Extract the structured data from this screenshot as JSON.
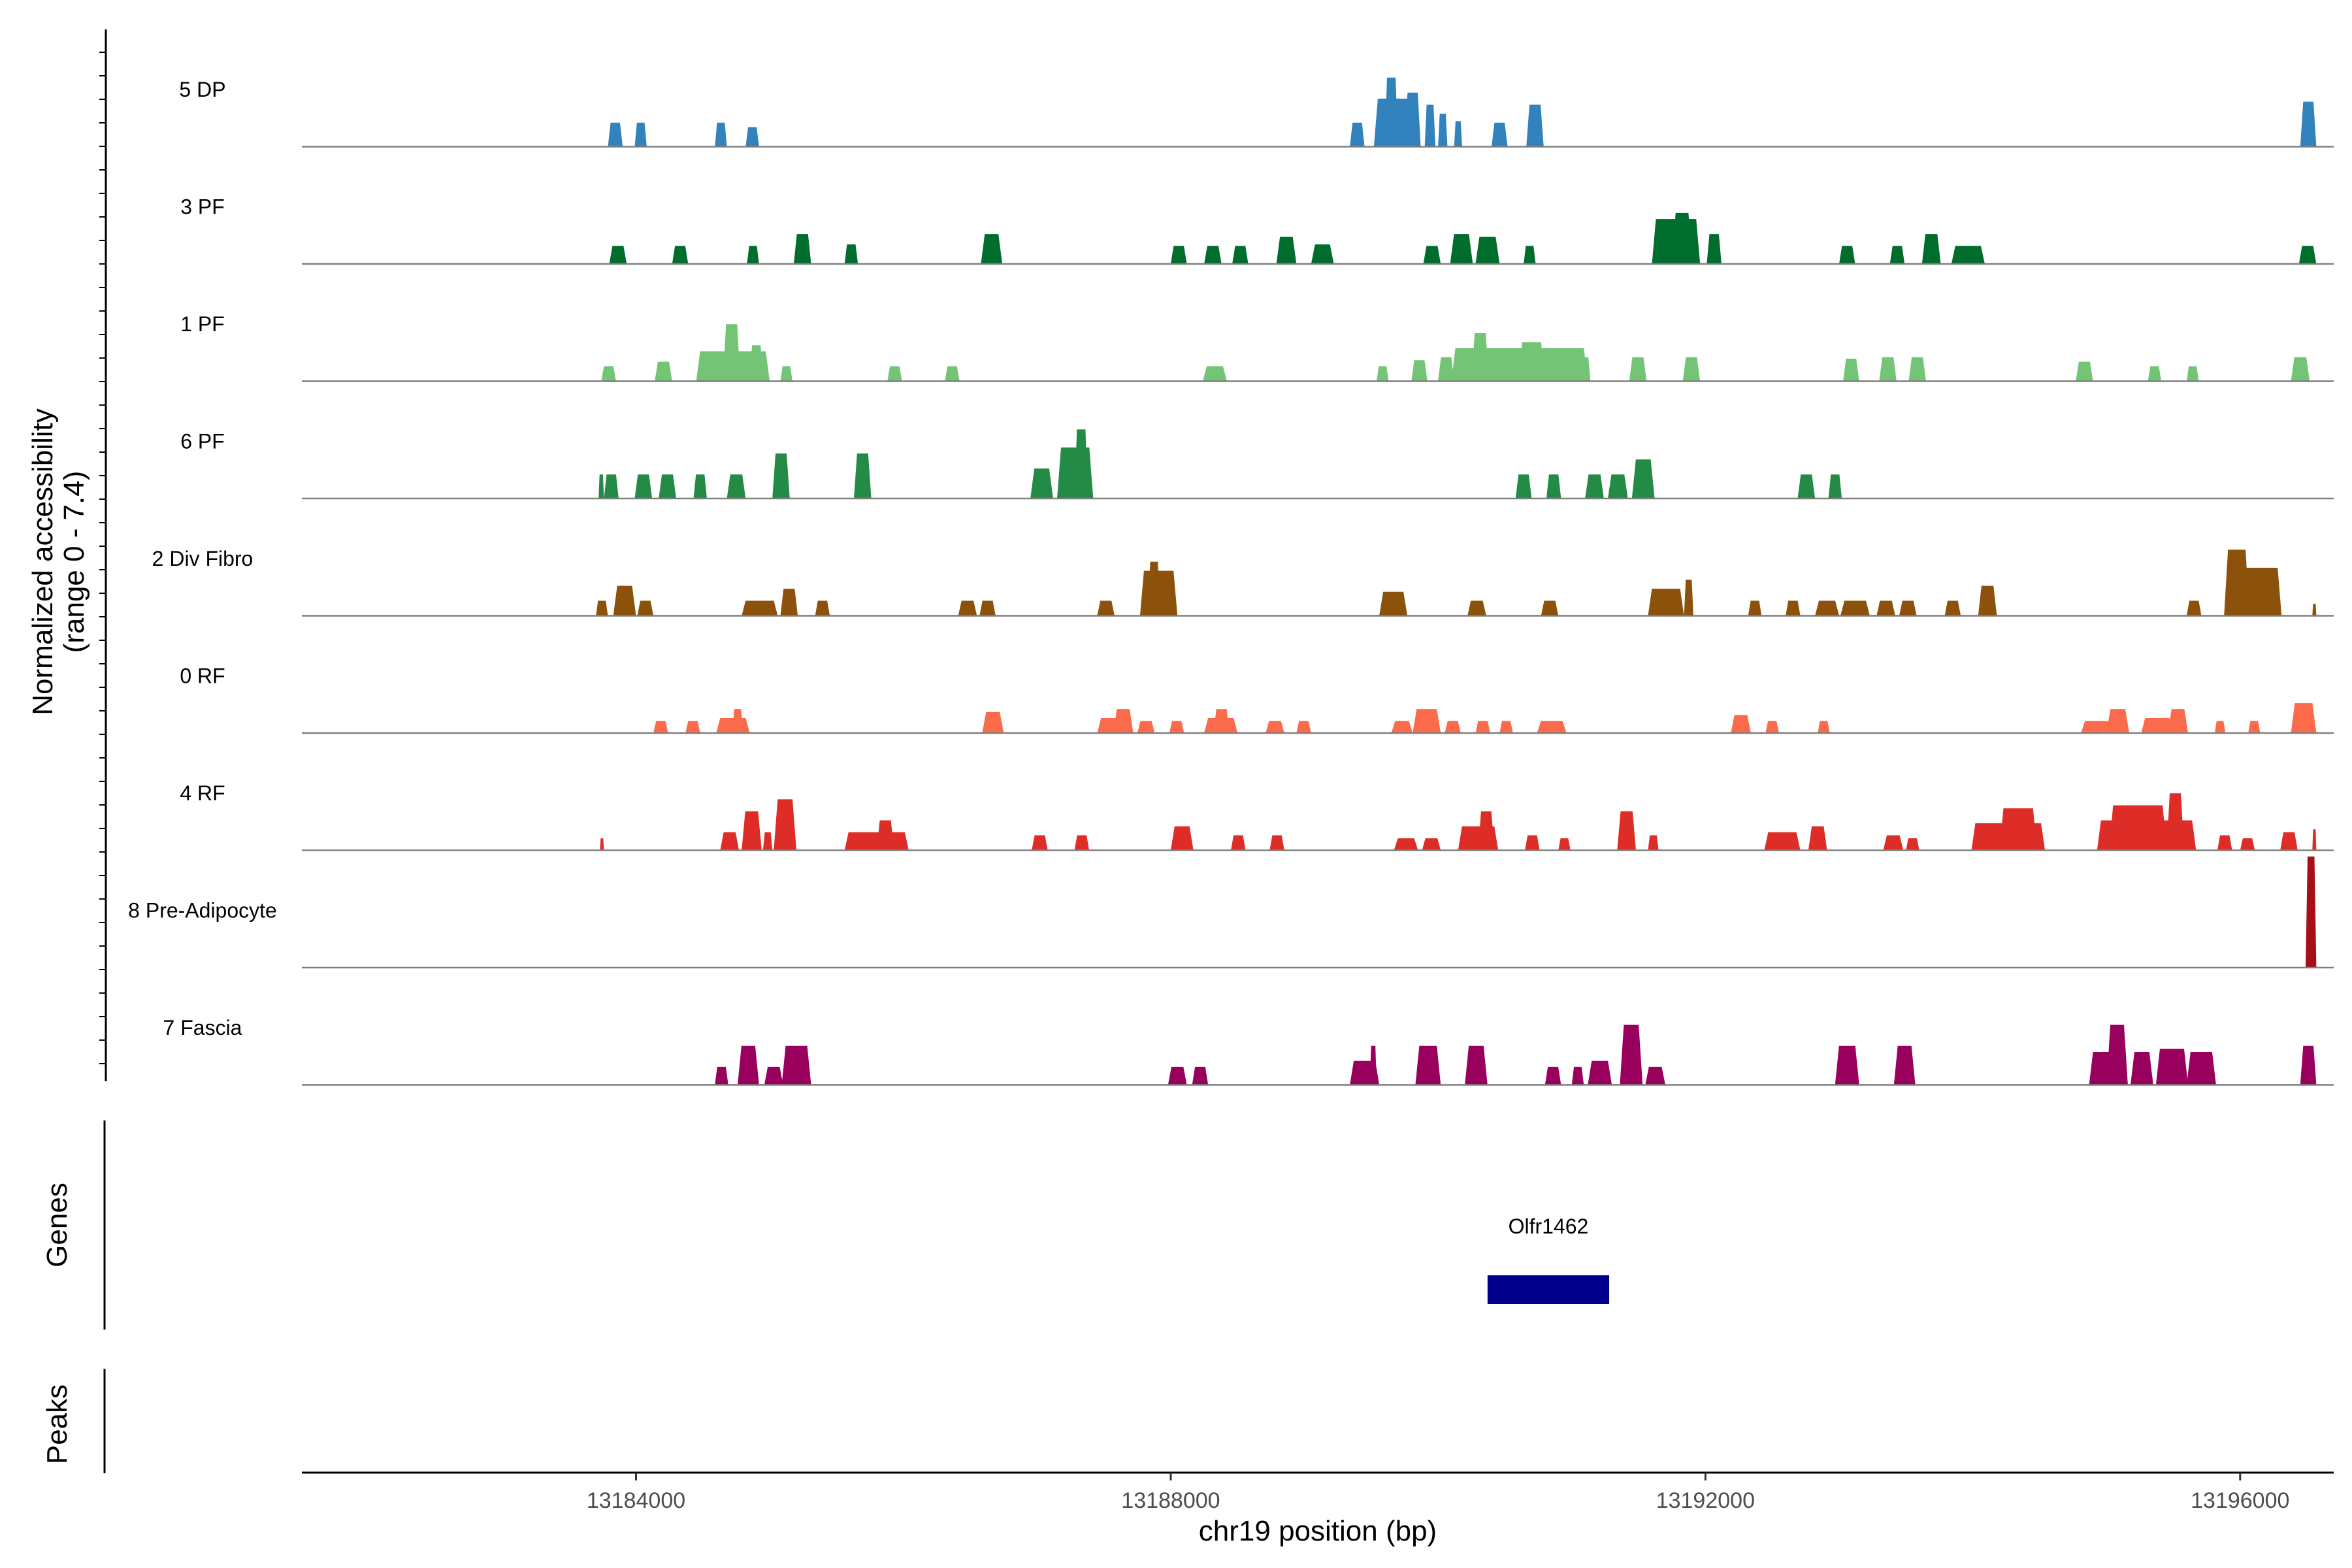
{
  "chart_data": {
    "type": "area",
    "title": "",
    "region": {
      "chrom": "chr19",
      "start": 13181500,
      "end": 13196700
    },
    "xlabel": "chr19 position (bp)",
    "ylabel_line1": "Normalized accessibility",
    "ylabel_line2": "(range 0 - 7.4)",
    "y_range": [
      0,
      7.4
    ],
    "x_ticks": [
      {
        "value": 13184000,
        "label": "13184000"
      },
      {
        "value": 13188000,
        "label": "13188000"
      },
      {
        "value": 13192000,
        "label": "13192000"
      },
      {
        "value": 13196000,
        "label": "13196000"
      }
    ],
    "genes_label": "Genes",
    "peaks_label": "Peaks",
    "genes": [
      {
        "name": "Olfr1462",
        "start": 13190370,
        "end": 13191280,
        "color": "#00008B"
      }
    ],
    "tracks": [
      {
        "name": "5 DP",
        "color": "#3182BD",
        "peaks": [
          [
            13183790,
            13183900,
            1.6
          ],
          [
            13183990,
            13184080,
            1.6
          ],
          [
            13184590,
            13184680,
            1.6
          ],
          [
            13184820,
            13184920,
            1.3
          ],
          [
            13189340,
            13189450,
            1.6
          ],
          [
            13189520,
            13189800,
            3.2
          ],
          [
            13189600,
            13189700,
            4.6
          ],
          [
            13189750,
            13189870,
            3.6
          ],
          [
            13189900,
            13189980,
            2.8
          ],
          [
            13190000,
            13190070,
            2.2
          ],
          [
            13190120,
            13190180,
            1.7
          ],
          [
            13190400,
            13190520,
            1.6
          ],
          [
            13190660,
            13190790,
            2.8
          ],
          [
            13196450,
            13196570,
            3.0
          ]
        ]
      },
      {
        "name": "3 PF",
        "color": "#006D2C",
        "peaks": [
          [
            13183800,
            13183930,
            1.2
          ],
          [
            13184270,
            13184390,
            1.2
          ],
          [
            13184830,
            13184920,
            1.2
          ],
          [
            13185180,
            13185310,
            2.0
          ],
          [
            13185560,
            13185660,
            1.3
          ],
          [
            13186580,
            13186740,
            2.0
          ],
          [
            13188000,
            13188120,
            1.2
          ],
          [
            13188250,
            13188380,
            1.2
          ],
          [
            13188460,
            13188580,
            1.2
          ],
          [
            13188790,
            13188940,
            1.8
          ],
          [
            13189050,
            13189220,
            1.3
          ],
          [
            13189890,
            13190020,
            1.2
          ],
          [
            13190090,
            13190260,
            2.0
          ],
          [
            13190280,
            13190460,
            1.8
          ],
          [
            13190640,
            13190730,
            1.2
          ],
          [
            13191600,
            13191960,
            3.0
          ],
          [
            13191750,
            13191900,
            3.4
          ],
          [
            13192010,
            13192120,
            2.0
          ],
          [
            13193000,
            13193120,
            1.2
          ],
          [
            13193380,
            13193490,
            1.2
          ],
          [
            13193620,
            13193760,
            2.0
          ],
          [
            13193840,
            13194090,
            1.2
          ],
          [
            13196440,
            13196570,
            1.2
          ]
        ]
      },
      {
        "name": "1 PF",
        "color": "#74C476",
        "peaks": [
          [
            13183740,
            13183850,
            1.0
          ],
          [
            13184140,
            13184270,
            1.3
          ],
          [
            13184450,
            13185000,
            2.0
          ],
          [
            13184650,
            13184780,
            3.8
          ],
          [
            13184850,
            13184950,
            2.4
          ],
          [
            13185080,
            13185170,
            1.0
          ],
          [
            13185880,
            13185990,
            1.0
          ],
          [
            13186310,
            13186420,
            1.0
          ],
          [
            13188240,
            13188420,
            1.0
          ],
          [
            13189540,
            13189630,
            1.0
          ],
          [
            13189800,
            13189920,
            1.4
          ],
          [
            13190000,
            13190120,
            1.6
          ],
          [
            13190100,
            13191120,
            2.2
          ],
          [
            13190250,
            13190380,
            3.2
          ],
          [
            13190600,
            13190800,
            2.6
          ],
          [
            13191050,
            13191140,
            1.6
          ],
          [
            13191430,
            13191560,
            1.6
          ],
          [
            13191830,
            13191960,
            1.6
          ],
          [
            13193030,
            13193150,
            1.5
          ],
          [
            13193300,
            13193430,
            1.6
          ],
          [
            13193520,
            13193650,
            1.6
          ],
          [
            13194770,
            13194900,
            1.3
          ],
          [
            13195310,
            13195410,
            1.0
          ],
          [
            13195600,
            13195690,
            1.0
          ],
          [
            13196380,
            13196520,
            1.6
          ]
        ]
      },
      {
        "name": "6 PF",
        "color": "#238B45",
        "peaks": [
          [
            13183720,
            13183760,
            1.6
          ],
          [
            13183760,
            13183870,
            1.6
          ],
          [
            13183990,
            13184120,
            1.6
          ],
          [
            13184170,
            13184300,
            1.6
          ],
          [
            13184430,
            13184530,
            1.6
          ],
          [
            13184680,
            13184820,
            1.6
          ],
          [
            13185020,
            13185150,
            3.0
          ],
          [
            13185630,
            13185760,
            3.0
          ],
          [
            13186950,
            13187120,
            2.0
          ],
          [
            13187150,
            13187420,
            3.4
          ],
          [
            13187280,
            13187380,
            4.6
          ],
          [
            13190580,
            13190700,
            1.6
          ],
          [
            13190810,
            13190920,
            1.6
          ],
          [
            13191100,
            13191240,
            1.6
          ],
          [
            13191270,
            13191420,
            1.6
          ],
          [
            13191450,
            13191620,
            2.6
          ],
          [
            13192690,
            13192820,
            1.6
          ],
          [
            13192920,
            13193020,
            1.6
          ]
        ]
      },
      {
        "name": "2 Div Fibro",
        "color": "#8C510A",
        "peaks": [
          [
            13183700,
            13183790,
            1.0
          ],
          [
            13183830,
            13184000,
            2.0
          ],
          [
            13184010,
            13184130,
            1.0
          ],
          [
            13184790,
            13185060,
            1.0
          ],
          [
            13185080,
            13185210,
            1.8
          ],
          [
            13185340,
            13185450,
            1.0
          ],
          [
            13186410,
            13186550,
            1.0
          ],
          [
            13186570,
            13186690,
            1.0
          ],
          [
            13187450,
            13187580,
            1.0
          ],
          [
            13187770,
            13188050,
            3.0
          ],
          [
            13187830,
            13187920,
            3.6
          ],
          [
            13189560,
            13189770,
            1.6
          ],
          [
            13190220,
            13190360,
            1.0
          ],
          [
            13190770,
            13190900,
            1.0
          ],
          [
            13191570,
            13191840,
            1.8
          ],
          [
            13191840,
            13191910,
            2.4
          ],
          [
            13192320,
            13192420,
            1.0
          ],
          [
            13192600,
            13192710,
            1.0
          ],
          [
            13192820,
            13193000,
            1.0
          ],
          [
            13193010,
            13193230,
            1.0
          ],
          [
            13193280,
            13193420,
            1.0
          ],
          [
            13193450,
            13193580,
            1.0
          ],
          [
            13193790,
            13193910,
            1.0
          ],
          [
            13194040,
            13194180,
            2.0
          ],
          [
            13195600,
            13195710,
            1.0
          ],
          [
            13195880,
            13196070,
            4.4
          ],
          [
            13196010,
            13196310,
            3.2
          ],
          [
            13196540,
            13196570,
            0.8
          ]
        ]
      },
      {
        "name": "0 RF",
        "color": "#FB6A4A",
        "peaks": [
          [
            13184130,
            13184240,
            0.8
          ],
          [
            13184370,
            13184480,
            0.8
          ],
          [
            13184600,
            13184850,
            1.0
          ],
          [
            13184720,
            13184800,
            1.6
          ],
          [
            13186590,
            13186750,
            1.4
          ],
          [
            13187450,
            13187620,
            1.0
          ],
          [
            13187570,
            13187720,
            1.6
          ],
          [
            13187750,
            13187880,
            0.8
          ],
          [
            13187990,
            13188100,
            0.8
          ],
          [
            13188250,
            13188500,
            1.0
          ],
          [
            13188320,
            13188440,
            1.6
          ],
          [
            13188710,
            13188850,
            0.8
          ],
          [
            13188940,
            13189050,
            0.8
          ],
          [
            13189650,
            13189810,
            0.8
          ],
          [
            13189810,
            13190020,
            1.6
          ],
          [
            13190050,
            13190170,
            0.8
          ],
          [
            13190280,
            13190390,
            0.8
          ],
          [
            13190460,
            13190560,
            0.8
          ],
          [
            13190740,
            13190960,
            0.8
          ],
          [
            13192190,
            13192340,
            1.2
          ],
          [
            13192450,
            13192550,
            0.8
          ],
          [
            13192840,
            13192930,
            0.8
          ],
          [
            13194810,
            13195040,
            0.8
          ],
          [
            13195000,
            13195170,
            1.6
          ],
          [
            13195260,
            13195500,
            1.0
          ],
          [
            13195460,
            13195610,
            1.6
          ],
          [
            13195810,
            13195890,
            0.8
          ],
          [
            13196060,
            13196150,
            0.8
          ],
          [
            13196380,
            13196570,
            2.0
          ]
        ]
      },
      {
        "name": "4 RF",
        "color": "#DE2D26",
        "peaks": [
          [
            13183730,
            13183760,
            0.8
          ],
          [
            13184630,
            13184770,
            1.2
          ],
          [
            13184790,
            13184940,
            2.6
          ],
          [
            13184950,
            13185020,
            1.2
          ],
          [
            13185030,
            13185200,
            3.4
          ],
          [
            13185560,
            13186040,
            1.2
          ],
          [
            13185800,
            13185930,
            2.0
          ],
          [
            13186960,
            13187080,
            1.0
          ],
          [
            13187280,
            13187390,
            1.0
          ],
          [
            13188000,
            13188170,
            1.6
          ],
          [
            13188450,
            13188560,
            1.0
          ],
          [
            13188740,
            13188850,
            1.0
          ],
          [
            13189670,
            13189850,
            0.8
          ],
          [
            13189880,
            13190020,
            0.8
          ],
          [
            13190150,
            13190450,
            1.6
          ],
          [
            13190300,
            13190420,
            2.6
          ],
          [
            13190650,
            13190760,
            1.0
          ],
          [
            13190900,
            13190990,
            0.8
          ],
          [
            13191340,
            13191480,
            2.6
          ],
          [
            13191570,
            13191650,
            1.0
          ],
          [
            13192440,
            13192710,
            1.2
          ],
          [
            13192770,
            13192910,
            1.6
          ],
          [
            13193330,
            13193480,
            1.0
          ],
          [
            13193500,
            13193600,
            0.8
          ],
          [
            13193990,
            13194540,
            1.8
          ],
          [
            13194200,
            13194480,
            2.8
          ],
          [
            13194930,
            13195670,
            2.0
          ],
          [
            13195020,
            13195450,
            3.0
          ],
          [
            13195450,
            13195580,
            3.8
          ],
          [
            13195830,
            13195940,
            1.0
          ],
          [
            13196000,
            13196110,
            0.8
          ],
          [
            13196300,
            13196430,
            1.2
          ],
          [
            13196540,
            13196570,
            1.4
          ]
        ]
      },
      {
        "name": "8 Pre-Adipocyte",
        "color": "#A50F15",
        "peaks": [
          [
            13196490,
            13196570,
            7.4
          ]
        ]
      },
      {
        "name": "7 Fascia",
        "color": "#99005E",
        "peaks": [
          [
            13184590,
            13184690,
            1.2
          ],
          [
            13184760,
            13184920,
            2.6
          ],
          [
            13184960,
            13185100,
            1.2
          ],
          [
            13185090,
            13185310,
            2.6
          ],
          [
            13187980,
            13188120,
            1.2
          ],
          [
            13188160,
            13188280,
            1.2
          ],
          [
            13189340,
            13189560,
            1.6
          ],
          [
            13189490,
            13189540,
            2.6
          ],
          [
            13189830,
            13190020,
            2.6
          ],
          [
            13190200,
            13190370,
            2.6
          ],
          [
            13190800,
            13190920,
            1.2
          ],
          [
            13191000,
            13191090,
            1.2
          ],
          [
            13191120,
            13191300,
            1.6
          ],
          [
            13191360,
            13191530,
            4.0
          ],
          [
            13191550,
            13191700,
            1.2
          ],
          [
            13192970,
            13193150,
            2.6
          ],
          [
            13193410,
            13193570,
            2.6
          ],
          [
            13194870,
            13195090,
            2.2
          ],
          [
            13195000,
            13195160,
            4.0
          ],
          [
            13195180,
            13195350,
            2.2
          ],
          [
            13195370,
            13195610,
            2.4
          ],
          [
            13195600,
            13195820,
            2.2
          ],
          [
            13196450,
            13196570,
            2.6
          ]
        ]
      }
    ]
  }
}
